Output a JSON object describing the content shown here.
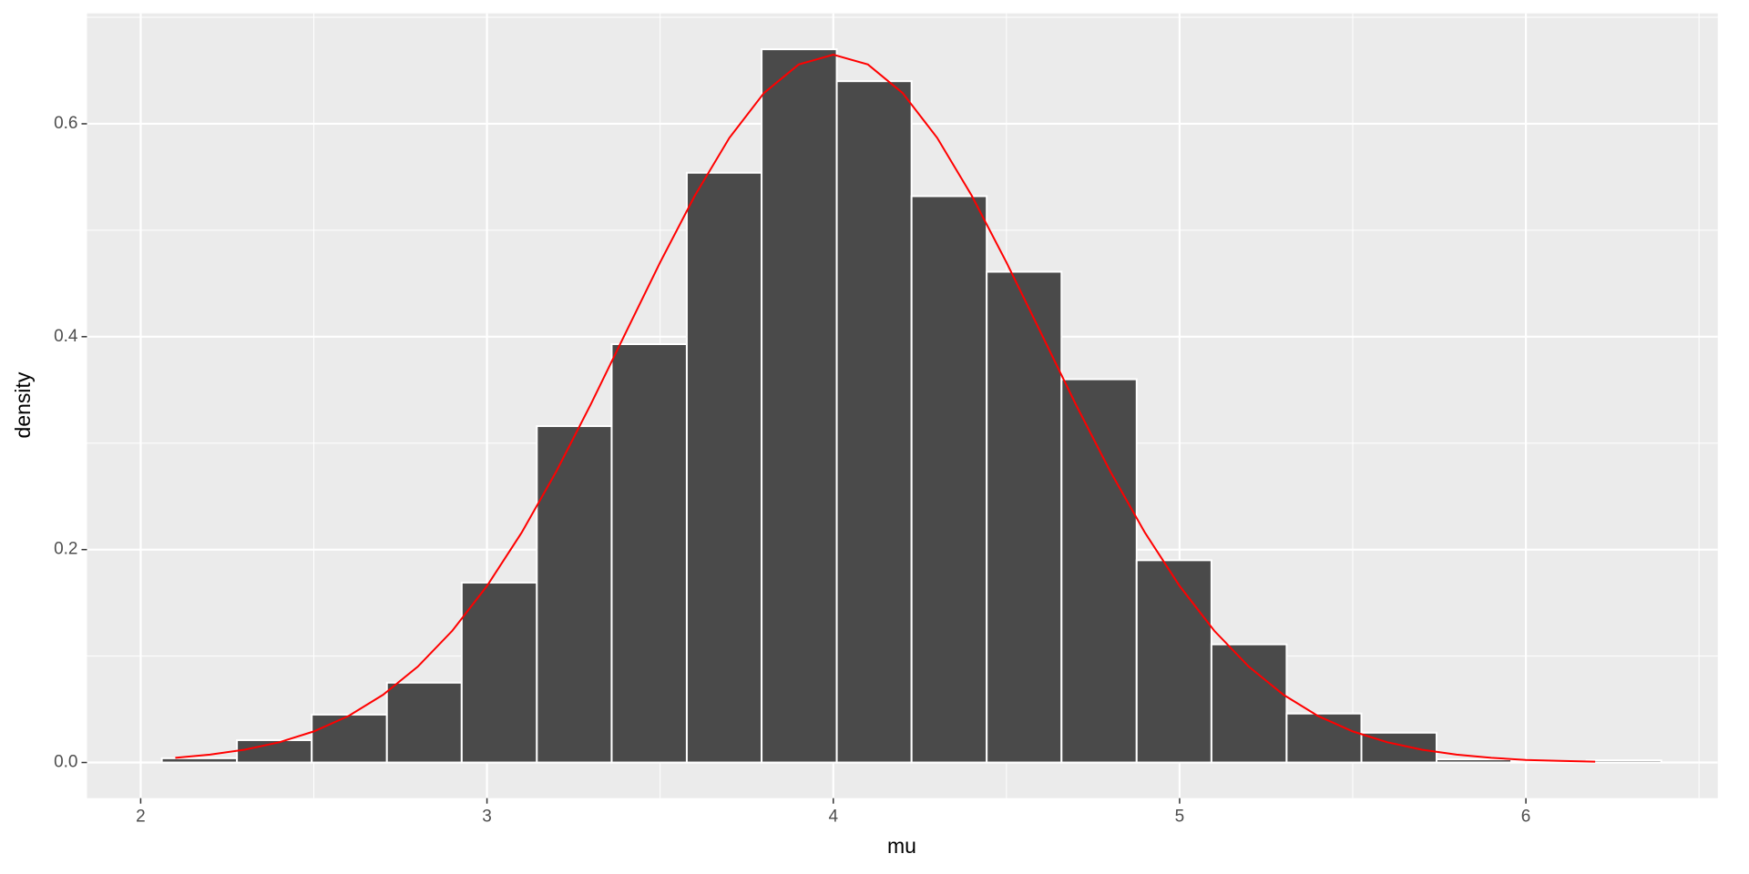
{
  "chart_data": {
    "type": "histogram",
    "x_label": "mu",
    "y_label": "density",
    "bins": [
      2.061,
      2.278,
      2.494,
      2.711,
      2.927,
      3.144,
      3.36,
      3.577,
      3.793,
      4.01,
      4.226,
      4.443,
      4.659,
      4.876,
      5.092,
      5.309,
      5.525,
      5.742,
      5.958,
      6.175,
      6.391
    ],
    "values": [
      0.004,
      0.021,
      0.045,
      0.075,
      0.169,
      0.316,
      0.393,
      0.554,
      0.67,
      0.64,
      0.532,
      0.461,
      0.36,
      0.19,
      0.111,
      0.046,
      0.028,
      0.003,
      0.001,
      0.002
    ],
    "color": "#4a4a4a",
    "edge_color": "#ffffff",
    "density_curve": {
      "color": "#ff0000",
      "x": [
        2.1,
        2.2,
        2.3,
        2.4,
        2.5,
        2.6,
        2.7,
        2.8,
        2.9,
        3.0,
        3.1,
        3.2,
        3.3,
        3.4,
        3.5,
        3.6,
        3.7,
        3.8,
        3.9,
        4.0,
        4.1,
        4.2,
        4.3,
        4.4,
        4.5,
        4.6,
        4.7,
        4.8,
        4.9,
        5.0,
        5.1,
        5.2,
        5.3,
        5.4,
        5.5,
        5.6,
        5.7,
        5.8,
        5.9,
        6.0,
        6.1,
        6.2
      ],
      "y": [
        0.0044,
        0.0074,
        0.012,
        0.019,
        0.0292,
        0.0437,
        0.0636,
        0.09,
        0.1238,
        0.1658,
        0.2159,
        0.2733,
        0.3366,
        0.4033,
        0.4698,
        0.5324,
        0.5868,
        0.629,
        0.6557,
        0.6649,
        0.6557,
        0.629,
        0.5868,
        0.5324,
        0.4698,
        0.4033,
        0.3366,
        0.2733,
        0.2159,
        0.1658,
        0.1238,
        0.09,
        0.0636,
        0.0437,
        0.0292,
        0.019,
        0.012,
        0.0074,
        0.0044,
        0.0024,
        0.0015,
        0.0008
      ]
    },
    "xlim": [
      1.845,
      6.554
    ],
    "ylim": [
      -0.0335,
      0.7037
    ],
    "xticks": [
      2,
      3,
      4,
      5,
      6
    ],
    "yticks": [
      {
        "value": 0,
        "label": "0.0"
      },
      {
        "value": 0.2,
        "label": "0.2"
      },
      {
        "value": 0.4,
        "label": "0.4"
      },
      {
        "value": 0.6,
        "label": "0.6"
      }
    ],
    "x_minor_breaks": [
      2.5,
      3.5,
      4.5,
      5.5,
      6.5
    ],
    "y_minor_breaks": [
      0.1,
      0.3,
      0.5,
      0.7
    ],
    "grid": true,
    "panel_color": "#ebebeb"
  }
}
